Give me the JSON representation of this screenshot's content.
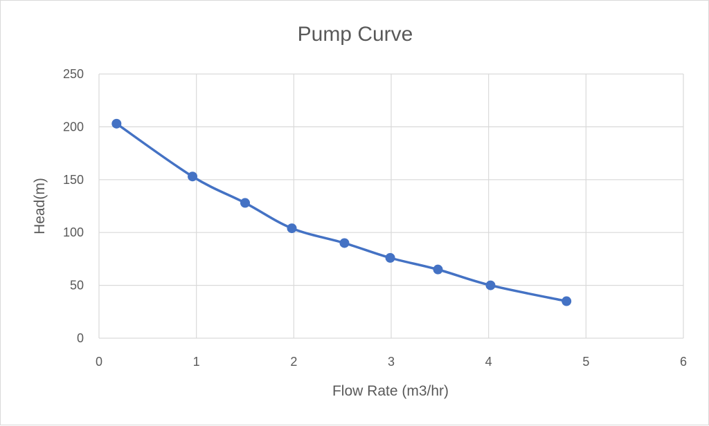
{
  "chart_data": {
    "type": "scatter",
    "title": "Pump Curve",
    "xlabel": "Flow Rate (m3/hr)",
    "ylabel": "Head(m)",
    "xlim": [
      0,
      6
    ],
    "ylim": [
      0,
      250
    ],
    "x_ticks": [
      "0",
      "1",
      "2",
      "3",
      "4",
      "5",
      "6"
    ],
    "y_ticks": [
      "0",
      "50",
      "100",
      "150",
      "200",
      "250"
    ],
    "grid": true,
    "legend": "none",
    "line": "smooth",
    "series": [
      {
        "color": "#4472c4",
        "points": [
          {
            "x": 0.18,
            "y": 203
          },
          {
            "x": 0.96,
            "y": 153
          },
          {
            "x": 1.5,
            "y": 128
          },
          {
            "x": 1.98,
            "y": 104
          },
          {
            "x": 2.52,
            "y": 90
          },
          {
            "x": 2.99,
            "y": 76
          },
          {
            "x": 3.48,
            "y": 65
          },
          {
            "x": 4.02,
            "y": 50
          },
          {
            "x": 4.8,
            "y": 35
          }
        ]
      }
    ]
  }
}
